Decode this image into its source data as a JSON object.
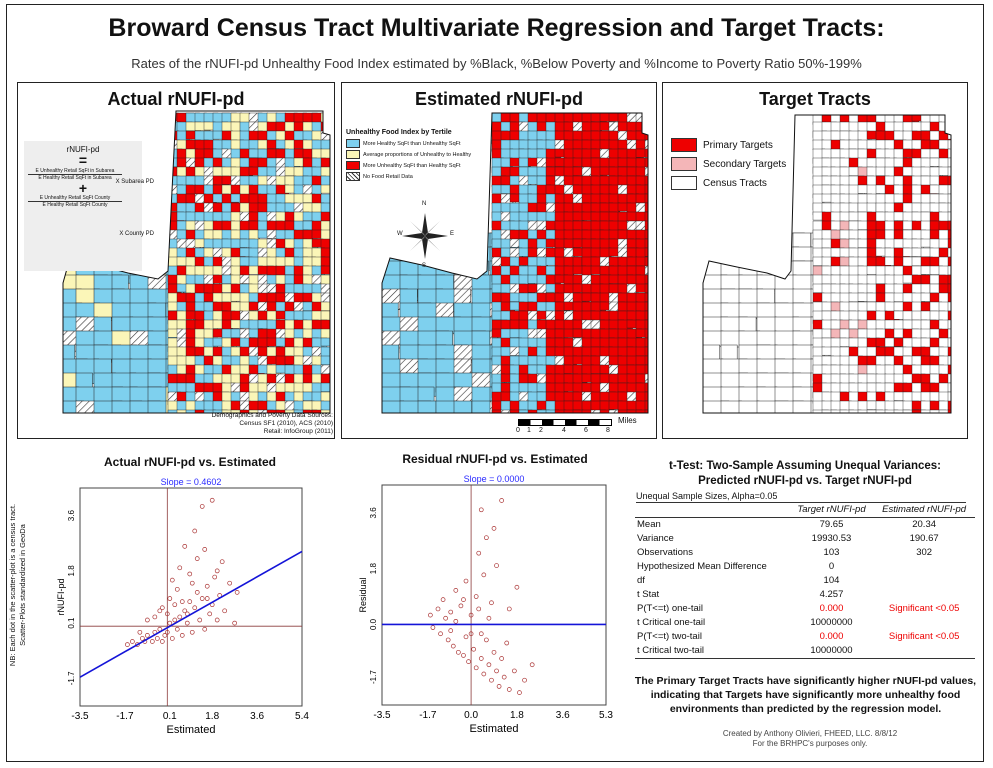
{
  "title": "Broward Census Tract Multivariate Regression and Target Tracts:",
  "subtitle": "Rates of the rNUFI-pd Unhealthy Food Index estimated by %Black, %Below Poverty and %Income to Poverty Ratio 50%-199%",
  "colors": {
    "primary": "#ee0000",
    "secondary": "#f4b6b8",
    "healthy": "#7ed0ee",
    "average": "#fbf6b8",
    "white": "#ffffff"
  },
  "map1": {
    "title": "Actual rNUFI-pd",
    "formula": {
      "top": "rNUFI-pd",
      "equals": "=",
      "frac1_num": "E Unhealthy Retail SqFt in Subarea",
      "frac1_den": "E Healthy Retail SqFt in Subarea",
      "frac1_mult": "X Subarea PD",
      "plus": "+",
      "frac2_num": "E Unhealthy Retail SqFt County",
      "frac2_den": "E Healthy Retail SqFt County",
      "frac2_mult": "X County PD"
    },
    "sources": [
      "Demographics and Poverty Data Sources:",
      "Census SF1 (2010), ACS (2010)",
      "Retail: InfoGroup (2011)"
    ]
  },
  "map2": {
    "title": "Estimated rNUFI-pd",
    "legend_title": "Unhealthy Food Index by Tertile",
    "legend": [
      {
        "label": "More Healthy SqFt than Unhealthy SqFt",
        "color": "#7ed0ee"
      },
      {
        "label": "Average proportions of Unhealthy to Healthy",
        "color": "#fbf6b8"
      },
      {
        "label": "More Unhealthy SqFt than Healthy SqFt",
        "color": "#ee0000"
      },
      {
        "label": "No Food Retail Data",
        "color": "hatch"
      }
    ],
    "compass": {
      "n": "N",
      "s": "S",
      "e": "E",
      "w": "W"
    },
    "scale_ticks": [
      "0",
      "1",
      "2",
      "4",
      "6",
      "8"
    ],
    "scale_unit": "Miles"
  },
  "map3": {
    "title": "Target Tracts",
    "legend": [
      {
        "label": "Primary Targets",
        "color": "#ee0000"
      },
      {
        "label": "Secondary Targets",
        "color": "#f4b6b8"
      },
      {
        "label": "Census Tracts",
        "color": "#ffffff"
      }
    ]
  },
  "chart_data": [
    {
      "type": "scatter",
      "title": "Actual rNUFI-pd vs. Estimated",
      "xlabel": "Estimated",
      "ylabel": "rNUFI-pd",
      "slope_label": "Slope = 0.4602",
      "x_ticks": [
        "-3.5",
        "-1.7",
        "0.1",
        "1.8",
        "3.6",
        "5.4"
      ],
      "y_ticks": [
        "-1.7",
        "0.1",
        "1.8",
        "3.6"
      ],
      "xlim": [
        -3.5,
        5.4
      ],
      "ylim": [
        -2.6,
        4.5
      ],
      "fit": {
        "slope": 0.4602,
        "intercept": -0.05
      },
      "points": [
        [
          -1.6,
          -0.6
        ],
        [
          -1.4,
          -0.5
        ],
        [
          -1.2,
          -0.6
        ],
        [
          -1.0,
          -0.4
        ],
        [
          -0.9,
          -0.5
        ],
        [
          -0.8,
          -0.3
        ],
        [
          -0.6,
          -0.5
        ],
        [
          -0.5,
          -0.2
        ],
        [
          -0.4,
          -0.4
        ],
        [
          -0.3,
          -0.1
        ],
        [
          -0.2,
          -0.5
        ],
        [
          -0.1,
          -0.3
        ],
        [
          0.0,
          -0.2
        ],
        [
          0.1,
          0.1
        ],
        [
          0.2,
          -0.4
        ],
        [
          0.3,
          0.2
        ],
        [
          0.4,
          -0.1
        ],
        [
          0.5,
          0.3
        ],
        [
          0.6,
          -0.3
        ],
        [
          0.7,
          0.5
        ],
        [
          0.8,
          0.1
        ],
        [
          0.9,
          0.8
        ],
        [
          1.0,
          -0.2
        ],
        [
          1.1,
          0.6
        ],
        [
          1.2,
          1.1
        ],
        [
          1.3,
          0.2
        ],
        [
          1.4,
          0.9
        ],
        [
          1.5,
          -0.1
        ],
        [
          1.6,
          1.3
        ],
        [
          1.7,
          0.4
        ],
        [
          1.8,
          0.7
        ],
        [
          1.9,
          1.6
        ],
        [
          2.0,
          0.2
        ],
        [
          2.1,
          1.0
        ],
        [
          2.3,
          0.5
        ],
        [
          2.5,
          1.4
        ],
        [
          2.7,
          0.1
        ],
        [
          -0.5,
          0.3
        ],
        [
          -0.2,
          0.6
        ],
        [
          0.1,
          0.9
        ],
        [
          0.4,
          1.2
        ],
        [
          0.6,
          0.8
        ],
        [
          0.2,
          1.5
        ],
        [
          0.5,
          1.9
        ],
        [
          0.9,
          1.7
        ],
        [
          1.2,
          2.2
        ],
        [
          1.5,
          2.5
        ],
        [
          1.1,
          3.1
        ],
        [
          1.4,
          3.9
        ],
        [
          1.8,
          4.1
        ],
        [
          0.7,
          2.6
        ],
        [
          2.2,
          2.1
        ],
        [
          -0.8,
          0.2
        ],
        [
          -1.1,
          -0.2
        ],
        [
          -0.3,
          0.5
        ],
        [
          0.0,
          0.4
        ],
        [
          0.3,
          0.7
        ],
        [
          0.8,
          0.4
        ],
        [
          1.0,
          1.4
        ],
        [
          1.6,
          0.9
        ],
        [
          2.0,
          1.8
        ],
        [
          2.8,
          1.1
        ]
      ]
    },
    {
      "type": "scatter",
      "title": "Residual rNUFI-pd vs. Estimated",
      "xlabel": "Estimated",
      "ylabel": "Residual",
      "slope_label": "Slope = 0.0000",
      "x_ticks": [
        "-3.5",
        "-1.7",
        "0.0",
        "1.8",
        "3.6",
        "5.3"
      ],
      "y_ticks": [
        "-1.7",
        "0.0",
        "1.8",
        "3.6"
      ],
      "xlim": [
        -3.5,
        5.3
      ],
      "ylim": [
        -2.6,
        4.5
      ],
      "fit": {
        "slope": 0,
        "intercept": 0
      },
      "points": [
        [
          -1.6,
          0.3
        ],
        [
          -1.5,
          -0.1
        ],
        [
          -1.3,
          0.5
        ],
        [
          -1.2,
          -0.3
        ],
        [
          -1.0,
          0.2
        ],
        [
          -0.9,
          -0.5
        ],
        [
          -0.8,
          0.4
        ],
        [
          -0.7,
          -0.7
        ],
        [
          -0.6,
          0.1
        ],
        [
          -0.5,
          -0.9
        ],
        [
          -0.4,
          0.6
        ],
        [
          -0.3,
          -1.0
        ],
        [
          -0.2,
          -0.4
        ],
        [
          -0.1,
          -1.2
        ],
        [
          0.0,
          0.3
        ],
        [
          0.1,
          -0.8
        ],
        [
          0.2,
          -1.4
        ],
        [
          0.3,
          0.5
        ],
        [
          0.4,
          -1.1
        ],
        [
          0.5,
          -1.6
        ],
        [
          0.6,
          -0.5
        ],
        [
          0.7,
          -1.3
        ],
        [
          0.8,
          -1.8
        ],
        [
          0.9,
          -0.9
        ],
        [
          1.0,
          -1.5
        ],
        [
          1.1,
          -2.0
        ],
        [
          1.2,
          -1.1
        ],
        [
          1.3,
          -1.7
        ],
        [
          1.5,
          -2.1
        ],
        [
          1.7,
          -1.5
        ],
        [
          1.9,
          -2.2
        ],
        [
          2.1,
          -1.8
        ],
        [
          -1.1,
          0.8
        ],
        [
          -0.6,
          1.1
        ],
        [
          -0.2,
          1.4
        ],
        [
          0.2,
          0.9
        ],
        [
          0.5,
          1.6
        ],
        [
          0.8,
          0.7
        ],
        [
          1.0,
          1.9
        ],
        [
          0.3,
          2.3
        ],
        [
          0.6,
          2.8
        ],
        [
          0.9,
          3.1
        ],
        [
          0.4,
          3.7
        ],
        [
          1.2,
          4.0
        ],
        [
          1.5,
          0.5
        ],
        [
          1.8,
          1.2
        ],
        [
          -0.3,
          0.8
        ],
        [
          0.0,
          -0.3
        ],
        [
          -0.8,
          -0.2
        ],
        [
          0.4,
          -0.3
        ],
        [
          0.7,
          0.2
        ],
        [
          1.4,
          -0.6
        ],
        [
          2.4,
          -1.3
        ]
      ]
    }
  ],
  "ttest": {
    "title": "t-Test: Two-Sample Assuming Unequal Variances:",
    "subtitle": "Predicted rNUFI-pd vs. Target rNUFI-pd",
    "note": "Unequal Sample Sizes, Alpha=0.05",
    "col1": "Target rNUFI-pd",
    "col2": "Estimated rNUFI-pd",
    "rows": [
      {
        "label": "Mean",
        "v1": "79.65",
        "v2": "20.34"
      },
      {
        "label": "Variance",
        "v1": "19930.53",
        "v2": "190.67"
      },
      {
        "label": "Observations",
        "v1": "103",
        "v2": "302"
      },
      {
        "label": "Hypothesized Mean Difference",
        "v1": "0",
        "v2": ""
      },
      {
        "label": "df",
        "v1": "104",
        "v2": ""
      },
      {
        "label": "t Stat",
        "v1": "4.257",
        "v2": ""
      },
      {
        "label": "P(T<=t) one-tail",
        "v1": "0.000",
        "v2": "Significant <0.05"
      },
      {
        "label": "t Critical one-tail",
        "v1": "10000000",
        "v2": ""
      },
      {
        "label": "P(T<=t) two-tail",
        "v1": "0.000",
        "v2": "Significant <0.05"
      },
      {
        "label": "t Critical two-tail",
        "v1": "10000000",
        "v2": ""
      }
    ]
  },
  "conclusion": "The Primary Target Tracts have significantly higher rNUFI-pd values, indicating that Targets have significantly more unhealthy food environments than predicted by the regression model.",
  "note_vertical": [
    "NB: Each dot in the scatter-plot is a census tract.",
    "Scatter-Plots standardized in GeoDa"
  ],
  "credit": [
    "Created by Anthony Olivieri, FHEED, LLC. 8/8/12",
    "For the BRHPC's purposes only."
  ]
}
